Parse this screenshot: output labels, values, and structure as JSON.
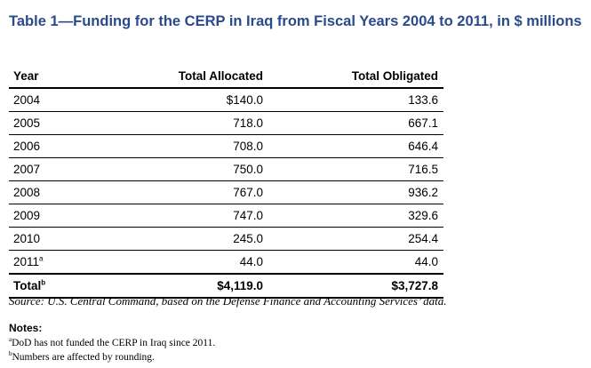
{
  "title": "Table 1—Funding for the CERP in Iraq from Fiscal Years 2004 to 2011, in $ millions",
  "headers": {
    "year": "Year",
    "allocated": "Total Allocated",
    "obligated": "Total Obligated"
  },
  "rows": [
    {
      "year": "2004",
      "allocated": "$140.0",
      "obligated": "133.6"
    },
    {
      "year": "2005",
      "allocated": "718.0",
      "obligated": "667.1"
    },
    {
      "year": "2006",
      "allocated": "708.0",
      "obligated": "646.4"
    },
    {
      "year": "2007",
      "allocated": "750.0",
      "obligated": "716.5"
    },
    {
      "year": "2008",
      "allocated": "767.0",
      "obligated": "936.2"
    },
    {
      "year": "2009",
      "allocated": "747.0",
      "obligated": "329.6"
    },
    {
      "year": "2010",
      "allocated": "245.0",
      "obligated": "254.4"
    },
    {
      "year": "2011",
      "year_note": "a",
      "allocated": "44.0",
      "obligated": "44.0"
    }
  ],
  "total": {
    "label": "Total",
    "label_note": "b",
    "allocated": "$4,119.0",
    "obligated": "$3,727.8"
  },
  "source": "Source:  U.S. Central Command, based on the Defense Finance and Accounting Services’ data.",
  "notes": {
    "heading": "Notes:",
    "items": [
      {
        "mark": "a",
        "text": "DoD has not funded the CERP in Iraq since 2011."
      },
      {
        "mark": "b",
        "text": "Numbers are affected by rounding."
      }
    ]
  }
}
